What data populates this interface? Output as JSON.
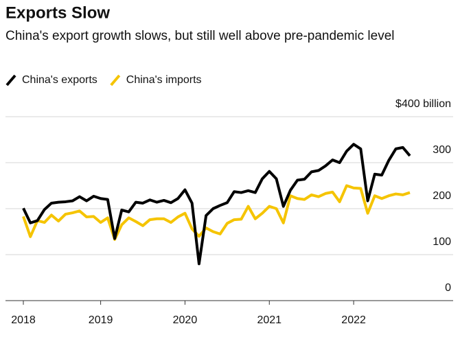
{
  "chart_data": {
    "type": "line",
    "title": "Exports Slow",
    "subtitle": "China's export growth slows, but still well above pre-pandemic level",
    "categories": [
      "2018",
      null,
      null,
      null,
      null,
      null,
      null,
      null,
      null,
      null,
      null,
      "2019",
      null,
      null,
      null,
      null,
      null,
      null,
      null,
      null,
      null,
      null,
      null,
      "2020",
      null,
      null,
      null,
      null,
      null,
      null,
      null,
      null,
      null,
      null,
      null,
      "2021",
      null,
      null,
      null,
      null,
      null,
      null,
      null,
      null,
      null,
      null,
      null,
      "2022",
      null,
      null,
      null,
      null,
      null,
      null,
      null,
      null
    ],
    "series": [
      {
        "name": "China's exports",
        "color": "#000000",
        "values": [
          201,
          169,
          174,
          198,
          212,
          214,
          215,
          217,
          226,
          217,
          227,
          222,
          220,
          135,
          197,
          193,
          214,
          212,
          219,
          214,
          218,
          213,
          222,
          241,
          212,
          80,
          185,
          200,
          207,
          213,
          237,
          235,
          239,
          235,
          265,
          281,
          265,
          205,
          240,
          262,
          264,
          280,
          283,
          293,
          306,
          300,
          325,
          340,
          330,
          217,
          275,
          273,
          305,
          330,
          333,
          315
        ]
      },
      {
        "name": "China's imports",
        "color": "#f5c400",
        "values": [
          183,
          139,
          174,
          170,
          186,
          173,
          188,
          191,
          195,
          182,
          183,
          170,
          180,
          133,
          165,
          180,
          172,
          163,
          176,
          178,
          178,
          170,
          182,
          190,
          156,
          140,
          158,
          150,
          145,
          168,
          176,
          177,
          205,
          178,
          190,
          205,
          200,
          169,
          228,
          222,
          220,
          230,
          226,
          233,
          236,
          215,
          250,
          245,
          244,
          190,
          228,
          222,
          228,
          232,
          230,
          235
        ]
      }
    ],
    "ylim": [
      0,
      400
    ],
    "yticks": [
      0,
      100,
      200,
      300,
      {
        "value": 400,
        "label": "$400 billion"
      }
    ],
    "grid": true,
    "legend": "top-left"
  }
}
